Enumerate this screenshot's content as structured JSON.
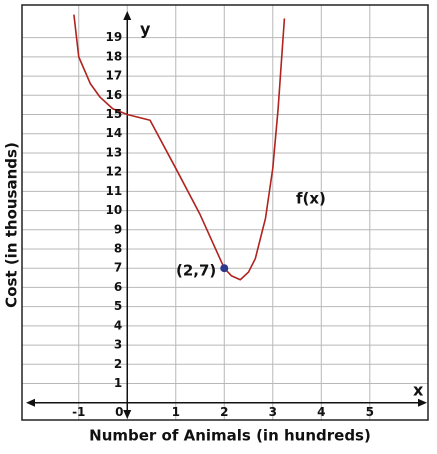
{
  "chart_data": {
    "type": "line",
    "x_label": "Number of Animals (in hundreds)",
    "y_label": "Cost (in thousands)",
    "x_axis_name": "x",
    "y_axis_name": "y",
    "x": [
      -1.1,
      -1,
      -0.76,
      -0.56,
      -0.3,
      0,
      0.47,
      1,
      1.5,
      2,
      2.15,
      2.33,
      2.5,
      2.64,
      2.85,
      3,
      3.11,
      3.24
    ],
    "series": [
      {
        "name": "f(x)",
        "color": "#b0231f",
        "values": [
          20.2,
          18,
          16.6,
          15.9,
          15.3,
          15,
          14.7,
          12.2,
          9.8,
          7,
          6.6,
          6.4,
          6.8,
          7.5,
          9.6,
          12.2,
          15.3,
          20
        ]
      }
    ],
    "highlight": {
      "label": "(2,7)",
      "x": 2,
      "y": 7,
      "color": "#2b3a8c"
    },
    "xlim": [
      -2.17,
      6.2
    ],
    "ylim": [
      -0.9,
      20.7
    ],
    "xticks": [
      -1,
      0,
      1,
      2,
      3,
      4,
      5
    ],
    "yticks": [
      1,
      2,
      3,
      4,
      5,
      6,
      7,
      8,
      9,
      10,
      11,
      12,
      13,
      14,
      15,
      16,
      17,
      18,
      19
    ],
    "grid": true
  }
}
